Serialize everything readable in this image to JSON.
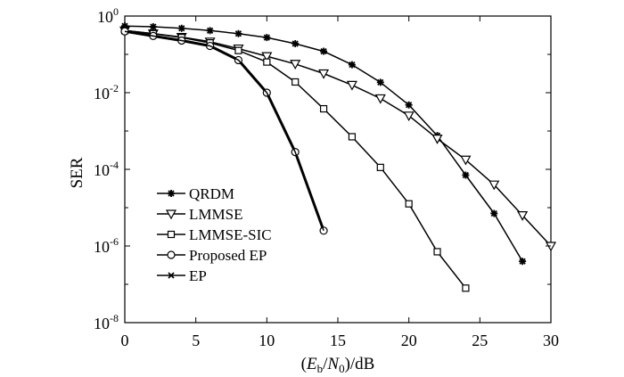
{
  "chart_data": {
    "type": "line",
    "xlabel": {
      "open": "(",
      "E": "E",
      "b": "b",
      "slash": "/",
      "N": "N",
      "zero": "0",
      "close": ")/dB"
    },
    "ylabel": "SER",
    "y_scale": "log",
    "xlim": [
      0,
      30
    ],
    "ylim_exponent": [
      -8,
      0
    ],
    "x_ticks": [
      "0",
      "5",
      "10",
      "15",
      "20",
      "25",
      "30"
    ],
    "y_ticks": [
      {
        "base": "10",
        "exp": "0"
      },
      {
        "base": "10",
        "exp": "-2"
      },
      {
        "base": "10",
        "exp": "-4"
      },
      {
        "base": "10",
        "exp": "-6"
      },
      {
        "base": "10",
        "exp": "-8"
      }
    ],
    "legend_position": "bottom-left",
    "series": [
      {
        "name": "QRDM",
        "marker": "asterisk",
        "x": [
          0,
          2,
          4,
          6,
          8,
          10,
          12,
          14,
          16,
          18,
          20,
          22,
          24,
          26,
          28
        ],
        "log10_y": [
          -0.26,
          -0.28,
          -0.32,
          -0.38,
          -0.46,
          -0.56,
          -0.72,
          -0.92,
          -1.27,
          -1.73,
          -2.32,
          -3.12,
          -4.15,
          -5.15,
          -6.4
        ]
      },
      {
        "name": "LMMSE",
        "marker": "triangle-down",
        "x": [
          0,
          2,
          4,
          6,
          8,
          10,
          12,
          14,
          16,
          18,
          20,
          22,
          24,
          26,
          28,
          30
        ],
        "log10_y": [
          -0.38,
          -0.46,
          -0.55,
          -0.67,
          -0.85,
          -1.05,
          -1.25,
          -1.5,
          -1.8,
          -2.15,
          -2.6,
          -3.2,
          -3.75,
          -4.4,
          -5.2,
          -6.0
        ]
      },
      {
        "name": "LMMSE-SIC",
        "marker": "square",
        "x": [
          0,
          2,
          4,
          6,
          8,
          10,
          12,
          14,
          16,
          18,
          20,
          22,
          24
        ],
        "log10_y": [
          -0.38,
          -0.46,
          -0.56,
          -0.7,
          -0.9,
          -1.2,
          -1.72,
          -2.42,
          -3.15,
          -3.95,
          -4.9,
          -6.15,
          -7.1
        ]
      },
      {
        "name": "Proposed EP",
        "marker": "circle",
        "x": [
          0,
          2,
          4,
          6,
          8,
          10,
          12,
          14
        ],
        "log10_y": [
          -0.4,
          -0.52,
          -0.64,
          -0.78,
          -1.15,
          -2.0,
          -3.55,
          -5.6
        ]
      },
      {
        "name": "EP",
        "marker": "x",
        "x": [
          0,
          2,
          4,
          6,
          8,
          10,
          12,
          14
        ],
        "log10_y": [
          -0.4,
          -0.52,
          -0.64,
          -0.78,
          -1.15,
          -2.0,
          -3.55,
          -5.6
        ]
      }
    ]
  }
}
